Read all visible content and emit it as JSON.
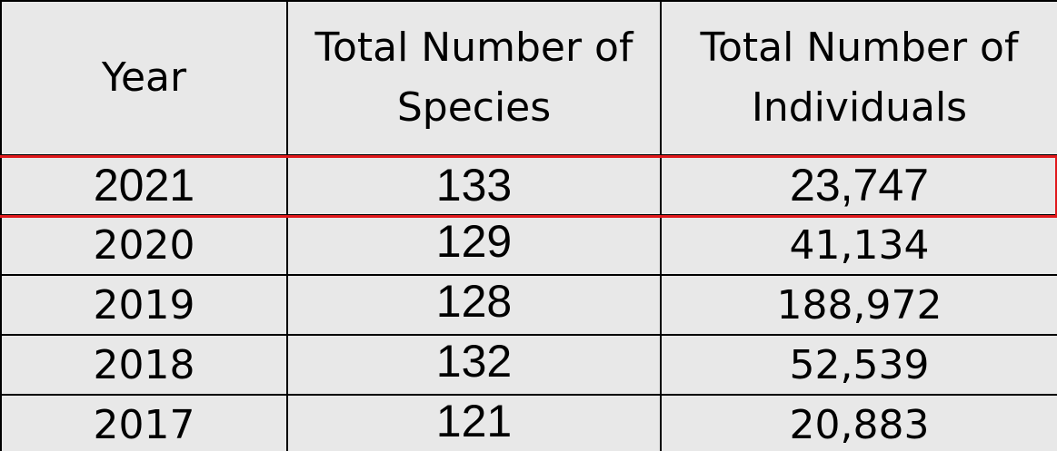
{
  "table": {
    "headers": {
      "year": "Year",
      "species": "Total Number of Species",
      "individuals": "Total Number of Individuals"
    },
    "rows": [
      {
        "year": "2021",
        "species": "133",
        "individuals": "23,747"
      },
      {
        "year": "2020",
        "species": "129",
        "individuals": "41,134"
      },
      {
        "year": "2019",
        "species": "128",
        "individuals": "188,972"
      },
      {
        "year": "2018",
        "species": "132",
        "individuals": "52,539"
      },
      {
        "year": "2017",
        "species": "121",
        "individuals": "20,883"
      }
    ],
    "highlighted_row": "2021",
    "highlight_color": "#e0191c",
    "background_color": "#e8e8e8"
  }
}
